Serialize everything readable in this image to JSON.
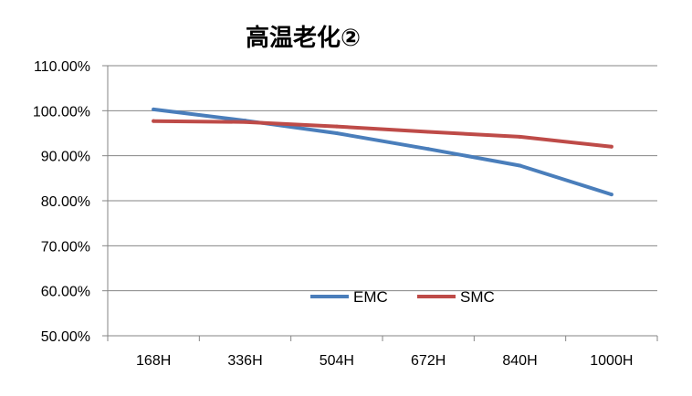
{
  "chart_data": {
    "type": "line",
    "title": "高温老化②",
    "categories": [
      "168H",
      "336H",
      "504H",
      "672H",
      "840H",
      "1000H"
    ],
    "y_tick_labels": [
      "110.00%",
      "100.00%",
      "90.00%",
      "80.00%",
      "70.00%",
      "60.00%",
      "50.00%"
    ],
    "ylim": [
      0.5,
      1.1
    ],
    "y_format": "percent_2dp",
    "grid": true,
    "legend_position": "inside-bottom-center",
    "series": [
      {
        "name": "EMC",
        "color": "#4a7ebb",
        "values": [
          1.003,
          0.978,
          0.95,
          0.915,
          0.878,
          0.814
        ]
      },
      {
        "name": "SMC",
        "color": "#be4b48",
        "values": [
          0.977,
          0.975,
          0.965,
          0.953,
          0.942,
          0.92
        ]
      }
    ]
  }
}
